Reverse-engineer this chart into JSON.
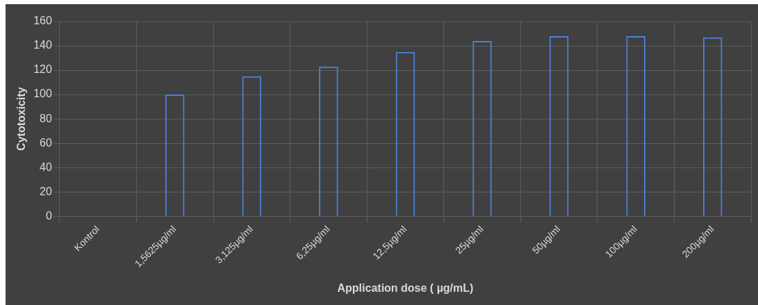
{
  "chart_data": {
    "type": "bar",
    "xlabel": "Application dose ( µg/mL)",
    "ylabel": "Cytotoxicity",
    "categories": [
      "Kontrol",
      "1,5625µg/ml",
      "3,125µg/ml",
      "6,25µg/ml",
      "12,5µg/ml",
      "25µg/ml",
      "50µg/ml",
      "100µg/ml",
      "200µg/ml"
    ],
    "values": [
      null,
      100,
      115,
      123,
      135,
      144,
      148,
      148,
      147
    ],
    "color": "#4a7fd8",
    "ylim": [
      0,
      160
    ],
    "yticks": [
      0,
      20,
      40,
      60,
      80,
      100,
      120,
      140,
      160
    ],
    "grid": true,
    "legend": false
  }
}
